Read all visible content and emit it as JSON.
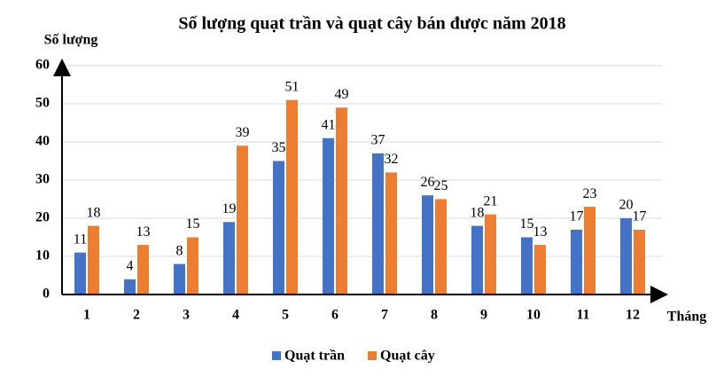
{
  "chart_data": {
    "type": "bar",
    "title": "Số lượng quạt trần và quạt cây bán được năm 2018",
    "y_label": "Số lượng",
    "x_label": "Tháng",
    "categories": [
      "1",
      "2",
      "3",
      "4",
      "5",
      "6",
      "7",
      "8",
      "9",
      "10",
      "11",
      "12"
    ],
    "series": [
      {
        "name": "Quạt trần",
        "color": "#4472c4",
        "values": [
          11,
          4,
          8,
          19,
          35,
          41,
          37,
          26,
          18,
          15,
          17,
          20
        ]
      },
      {
        "name": "Quạt cây",
        "color": "#ed7d31",
        "values": [
          18,
          13,
          15,
          39,
          51,
          49,
          32,
          25,
          21,
          13,
          23,
          17
        ]
      }
    ],
    "ylim": [
      0,
      60
    ],
    "yticks": [
      0,
      10,
      20,
      30,
      40,
      50,
      60
    ],
    "grid": true,
    "legend": "bottom"
  }
}
